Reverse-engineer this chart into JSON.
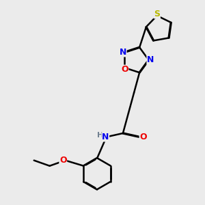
{
  "background_color": "#ebebeb",
  "bond_color": "#000000",
  "atom_colors": {
    "S": "#b8b800",
    "N": "#0000ee",
    "O": "#ee0000",
    "H": "#708090"
  },
  "lw": 1.8,
  "dbo": 0.018
}
